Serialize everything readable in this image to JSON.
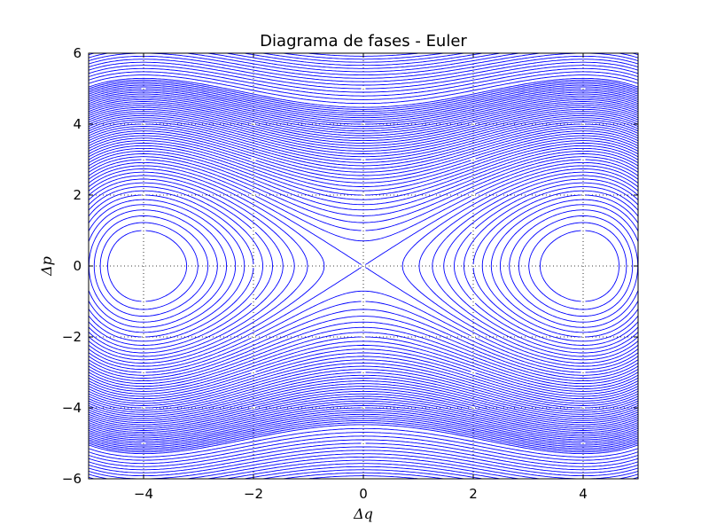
{
  "chart_data": {
    "type": "line",
    "title": "Diagrama de fases - Euler",
    "xlabel": "Δq",
    "ylabel": "Δp",
    "xlim": [
      -5,
      5
    ],
    "ylim": [
      -6,
      6
    ],
    "xticks": [
      -4,
      -2,
      0,
      2,
      4
    ],
    "yticks": [
      -6,
      -4,
      -2,
      0,
      2,
      4,
      6
    ],
    "xtick_labels": [
      "−4",
      "−2",
      "0",
      "2",
      "4"
    ],
    "ytick_labels": [
      "−6",
      "−4",
      "−2",
      "0",
      "2",
      "4",
      "6"
    ],
    "grid": true,
    "grid_style": "dotted",
    "line_color": "#0000ff",
    "levels": [
      -3.5,
      -3.25,
      -3.0,
      -2.75,
      -2.5,
      -2.25,
      -2.0,
      -1.75,
      -1.5,
      -1.25,
      -1.0,
      -0.75,
      -0.5,
      -0.25,
      0.0,
      0.25,
      0.5,
      0.75,
      1.0,
      1.25,
      1.5,
      1.75,
      2.0,
      2.25,
      2.5,
      2.75,
      3.0,
      3.25,
      3.5,
      3.75,
      4.0,
      4.25,
      4.5,
      4.75,
      5.0,
      5.25,
      5.5,
      5.75,
      6.0,
      6.25,
      6.5,
      6.75,
      7.0,
      7.25,
      7.5,
      7.75,
      8.0,
      8.25,
      8.5,
      8.75,
      9.0,
      9.25,
      9.5,
      9.75,
      10.0,
      10.5,
      11.0,
      11.5,
      12.0,
      12.5,
      13.0,
      13.5,
      14.0,
      14.5,
      15.0,
      15.5,
      16.0,
      16.5,
      17.0,
      17.5,
      18.0
    ]
  }
}
